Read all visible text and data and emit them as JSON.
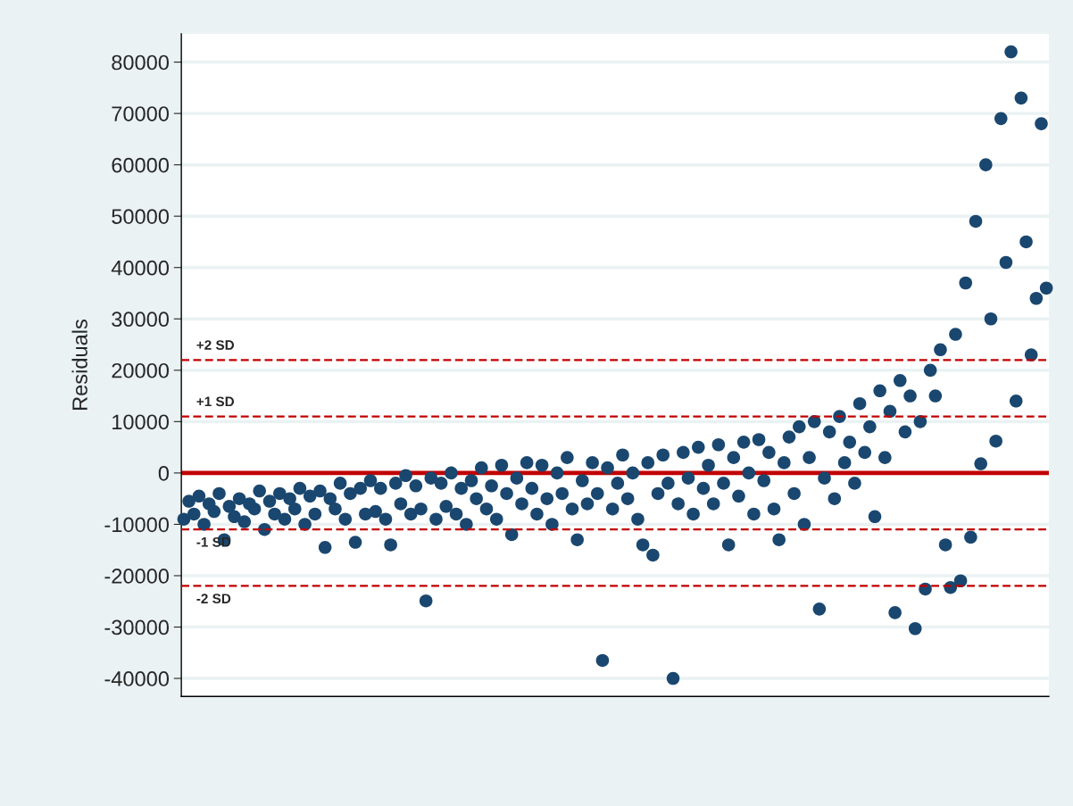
{
  "chart_data": {
    "type": "scatter",
    "ylabel": "Residuals",
    "categories": [
      null,
      null,
      null,
      null,
      null,
      null,
      null,
      null,
      null,
      null,
      null,
      null,
      null,
      null,
      null,
      null,
      null,
      null,
      null,
      null,
      null,
      null,
      null,
      null,
      null,
      null,
      null,
      null,
      null,
      null,
      null,
      null,
      null,
      null,
      null,
      null,
      null,
      null,
      null,
      null,
      null,
      null,
      null,
      null,
      null,
      null,
      null,
      null,
      null,
      null,
      null,
      null,
      null,
      null,
      null,
      null,
      null,
      null,
      null,
      null,
      null,
      null,
      null,
      null,
      null,
      null,
      null,
      null,
      null,
      null,
      null,
      null,
      null,
      null,
      null,
      null,
      null,
      null,
      null,
      null,
      null,
      null,
      null,
      null,
      null,
      null,
      null,
      null,
      null,
      null,
      null,
      null,
      null,
      null,
      null,
      null,
      null,
      null,
      null,
      null,
      null,
      null,
      null,
      null,
      null,
      null,
      null,
      null,
      null,
      null,
      null,
      null,
      null,
      null,
      null,
      null,
      null,
      null,
      null,
      null,
      null,
      null,
      null,
      null,
      null,
      null,
      null,
      null,
      null,
      null,
      null,
      null,
      null,
      null,
      null,
      null,
      null,
      null,
      null,
      null,
      null,
      null,
      null,
      null,
      null,
      null,
      null,
      null,
      null,
      null,
      null,
      null,
      null,
      null,
      null,
      null,
      null,
      null,
      null,
      null,
      null,
      null,
      null,
      null,
      null,
      null,
      null,
      null,
      null,
      null,
      null,
      null
    ],
    "series": [
      {
        "color": "#1a476f",
        "values": [
          -9000,
          -5500,
          -8000,
          -4500,
          -10000,
          -6000,
          -7500,
          -4000,
          -13000,
          -6500,
          -8500,
          -5000,
          -9500,
          -6000,
          -7000,
          -3500,
          -11000,
          -5500,
          -8000,
          -4000,
          -9000,
          -5000,
          -7000,
          -3000,
          -10000,
          -4500,
          -8000,
          -3500,
          -14500,
          -5000,
          -7000,
          -2000,
          -9000,
          -4000,
          -13500,
          -3000,
          -8000,
          -1500,
          -7500,
          -3000,
          -9000,
          -14000,
          -2000,
          -6000,
          -500,
          -8000,
          -2500,
          -7000,
          -24900,
          -1000,
          -9000,
          -2000,
          -6500,
          0,
          -8000,
          -3000,
          -10000,
          -1500,
          -5000,
          1000,
          -7000,
          -2500,
          -9000,
          1500,
          -4000,
          -12000,
          -1000,
          -6000,
          2000,
          -3000,
          -8000,
          1500,
          -5000,
          -10000,
          0,
          -4000,
          3000,
          -7000,
          -13000,
          -1500,
          -6000,
          2000,
          -4000,
          -36500,
          1000,
          -7000,
          -2000,
          3500,
          -5000,
          0,
          -9000,
          -14000,
          2000,
          -16000,
          -4000,
          3500,
          -2000,
          -40000,
          -6000,
          4000,
          -1000,
          -8000,
          5000,
          -3000,
          1500,
          -6000,
          5500,
          -2000,
          -14000,
          3000,
          -4500,
          6000,
          0,
          -8000,
          6500,
          -1500,
          4000,
          -7000,
          -13000,
          2000,
          7000,
          -4000,
          9000,
          -10000,
          3000,
          10000,
          -26500,
          -1000,
          8000,
          -5000,
          11000,
          2000,
          6000,
          -2000,
          13500,
          4000,
          9000,
          -8500,
          16000,
          3000,
          12000,
          -27200,
          18000,
          8000,
          15000,
          -30300,
          10000,
          -22600,
          20000,
          15000,
          24000,
          -14000,
          -22300,
          27000,
          -21000,
          37000,
          -12500,
          49000,
          1800,
          60000,
          30000,
          6200,
          69000,
          41000,
          82000,
          14000,
          73000,
          45000,
          23000,
          34000,
          68000,
          36000
        ]
      }
    ],
    "ylim": [
      -43500,
      85500
    ],
    "yticks": [
      {
        "value": -40000,
        "label": "-40000"
      },
      {
        "value": -30000,
        "label": "-30000"
      },
      {
        "value": -20000,
        "label": "-20000"
      },
      {
        "value": -10000,
        "label": "-10000"
      },
      0,
      10000,
      20000,
      30000,
      40000,
      50000,
      60000,
      70000,
      80000
    ],
    "ref_lines": [
      {
        "axis": "y",
        "value": 0,
        "color": "#c10000",
        "line_style": "solid"
      },
      {
        "axis": "y",
        "value": 22000,
        "label": "+2 SD",
        "color": "#c10000",
        "line_style": "dashed"
      },
      {
        "axis": "y",
        "value": 11000,
        "label": "+1 SD",
        "color": "#c10000",
        "line_style": "dashed"
      },
      {
        "axis": "y",
        "value": -11000,
        "label": "-1 SD",
        "color": "#c10000",
        "line_style": "dashed"
      },
      {
        "axis": "y",
        "value": -22000,
        "label": "-2 SD",
        "color": "#c10000",
        "line_style": "dashed"
      }
    ],
    "grid": "y",
    "marker": "circle",
    "tick_labels": "y"
  }
}
